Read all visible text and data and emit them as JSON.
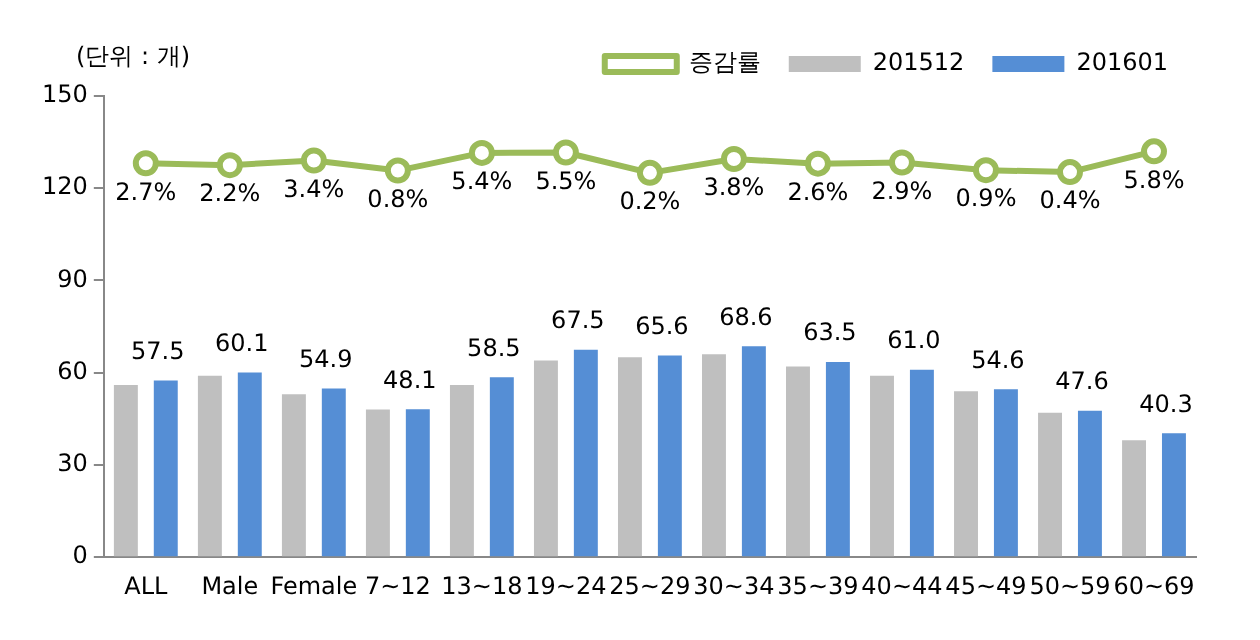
{
  "chart_data": {
    "type": "bar",
    "ylabel": "(단위 : 개)",
    "categories": [
      "ALL",
      "Male",
      "Female",
      "7~12",
      "13~18",
      "19~24",
      "25~29",
      "30~34",
      "35~39",
      "40~44",
      "45~49",
      "50~59",
      "60~69"
    ],
    "series": [
      {
        "name": "201512",
        "color": "#bfbfbf",
        "values": [
          56,
          59,
          53,
          48,
          56,
          64,
          65,
          66,
          62,
          59,
          54,
          47,
          38
        ]
      },
      {
        "name": "201601",
        "color": "#558ed5",
        "values": [
          57.5,
          60.1,
          54.9,
          48.1,
          58.5,
          67.5,
          65.6,
          68.6,
          63.5,
          61.0,
          54.6,
          47.6,
          40.3
        ],
        "value_labels": [
          "57.5",
          "60.1",
          "54.9",
          "48.1",
          "58.5",
          "67.5",
          "65.6",
          "68.6",
          "63.5",
          "61.0",
          "54.6",
          "47.6",
          "40.3"
        ]
      },
      {
        "name": "증감률",
        "type": "line",
        "axis": "y2",
        "color": "#9bbb59",
        "values": [
          2.7,
          2.2,
          3.4,
          0.8,
          5.4,
          5.5,
          0.2,
          3.8,
          2.6,
          2.9,
          0.9,
          0.4,
          5.8
        ],
        "value_labels": [
          "2.7%",
          "2.2%",
          "3.4%",
          "0.8%",
          "5.4%",
          "5.5%",
          "0.2%",
          "3.8%",
          "2.6%",
          "2.9%",
          "0.9%",
          "0.4%",
          "5.8%"
        ]
      }
    ],
    "ylim": [
      0,
      150
    ],
    "yticks": [
      0,
      30,
      60,
      90,
      120,
      150
    ],
    "y2lim": [
      -99.8,
      20.2
    ],
    "grid": false,
    "legend": "top right",
    "marker": "circle",
    "line_style": "solid"
  }
}
